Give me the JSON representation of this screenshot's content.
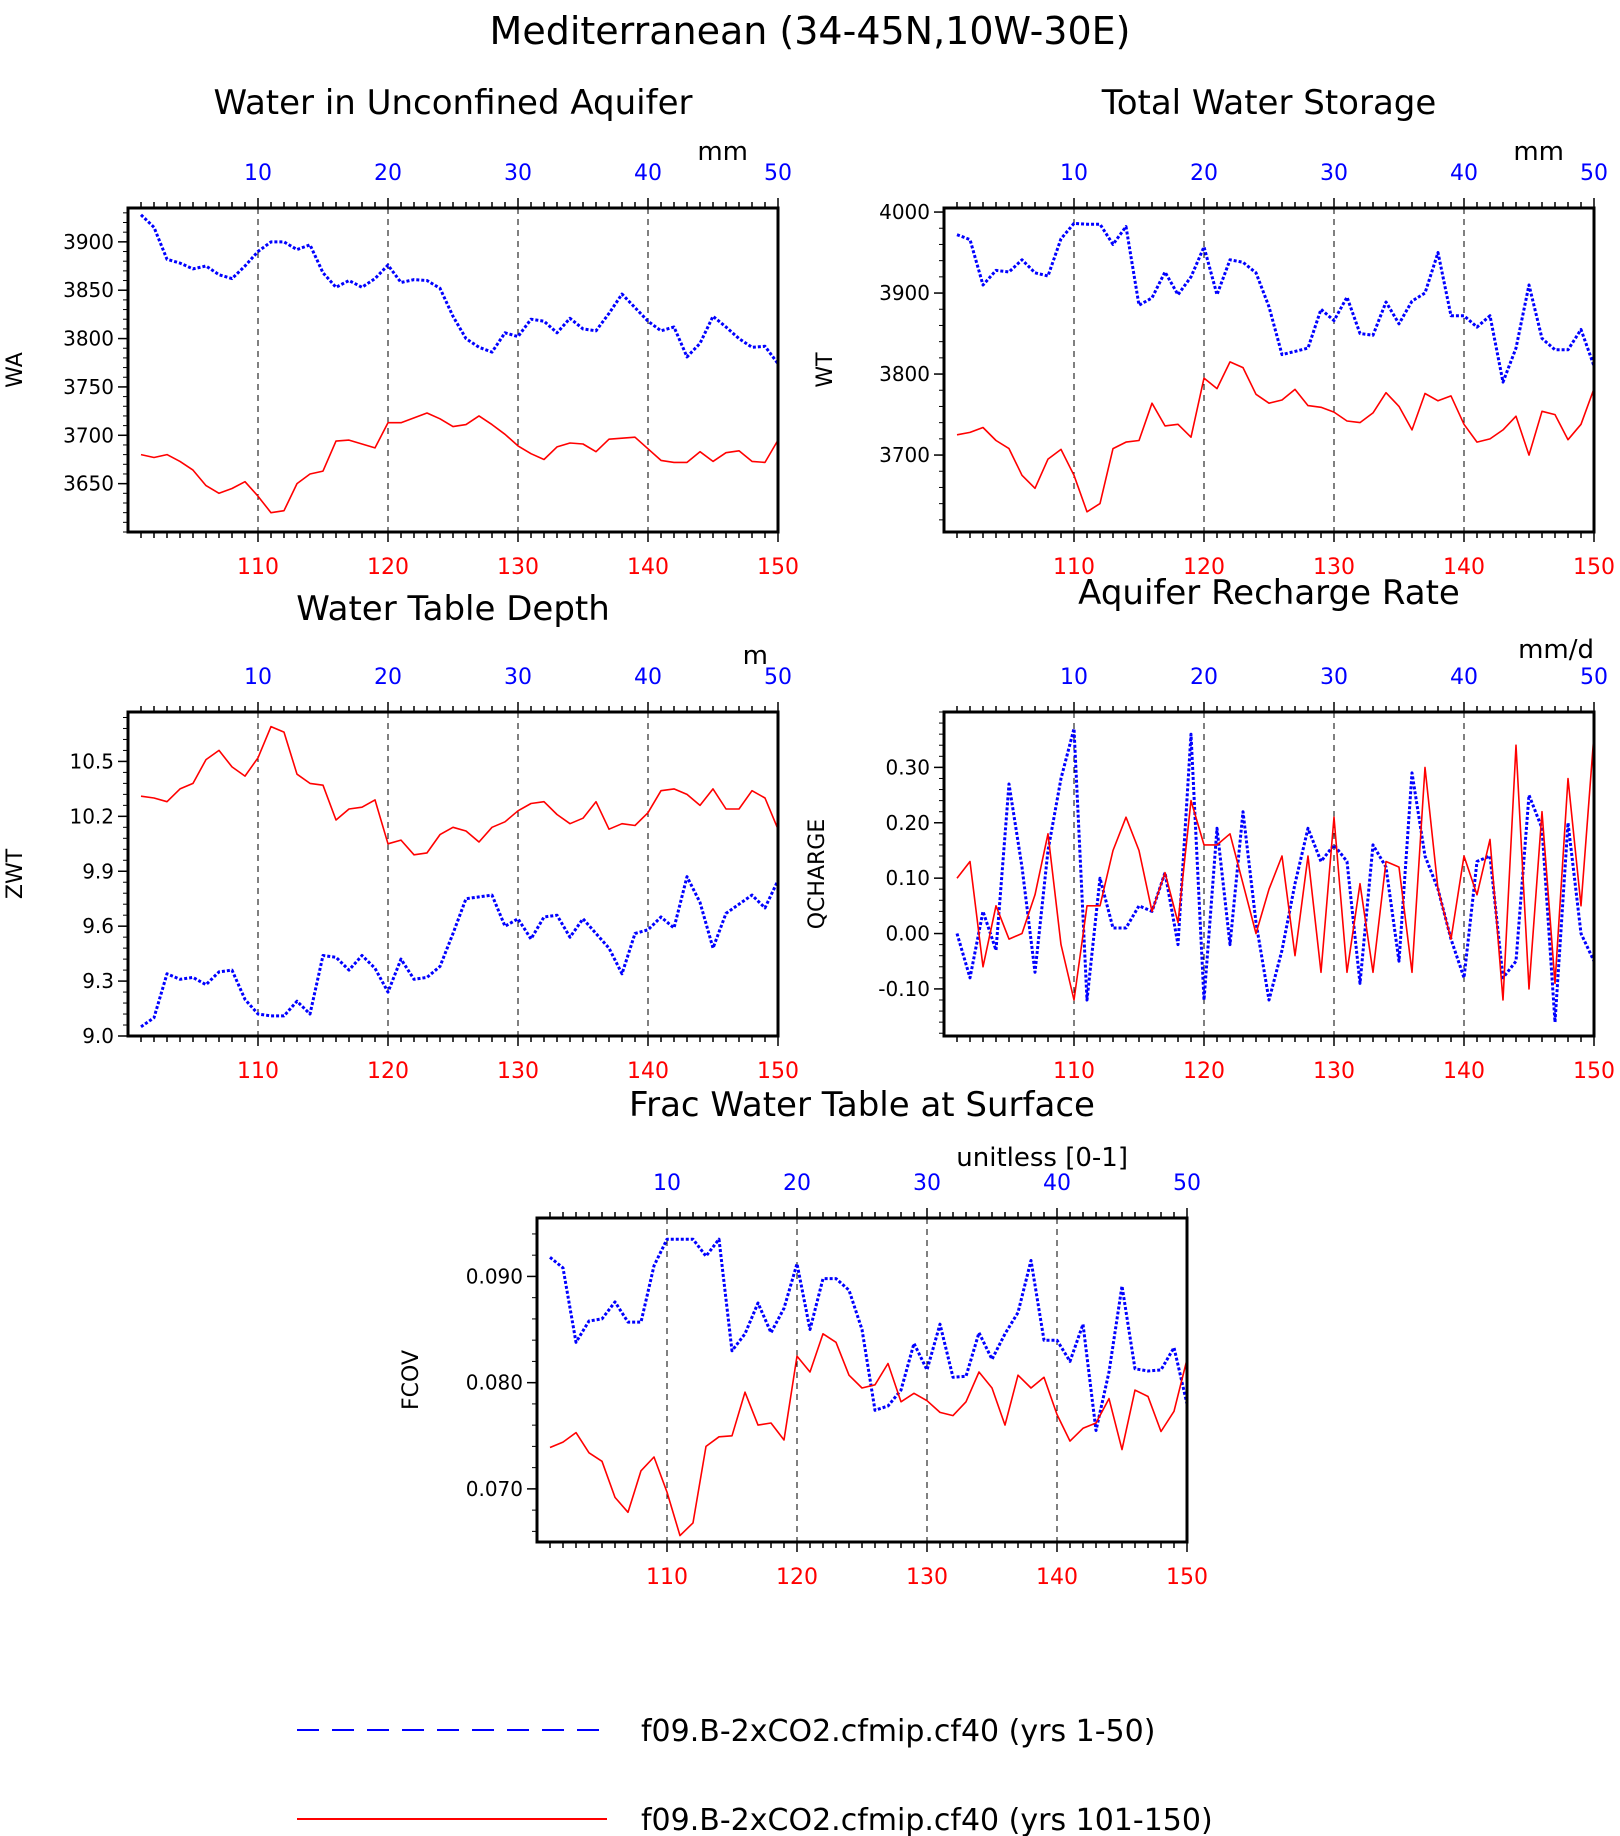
{
  "figure": {
    "title": "Mediterranean (34-45N,10W-30E)",
    "legend": [
      {
        "label": "f09.B-2xCO2.cfmip.cf40 (yrs 1-50)",
        "color": "#0000ff",
        "dash": "dashed"
      },
      {
        "label": "f09.B-2xCO2.cfmip.cf40 (yrs 101-150)",
        "color": "#ff0000",
        "dash": "solid"
      }
    ]
  },
  "chart_data": [
    {
      "type": "line",
      "title": "Water in Unconfined Aquifer",
      "ylabel": "WA",
      "units": "mm",
      "ylim": [
        3600,
        3935
      ],
      "yticks": [
        {
          "v": 3650,
          "label": "3650"
        },
        {
          "v": 3700,
          "label": "3700"
        },
        {
          "v": 3750,
          "label": "3750"
        },
        {
          "v": 3800,
          "label": "3800"
        },
        {
          "v": 3850,
          "label": "3850"
        },
        {
          "v": 3900,
          "label": "3900"
        }
      ],
      "bottom_ticks": [
        "110",
        "120",
        "130",
        "140",
        "150"
      ],
      "top_ticks": [
        "10",
        "20",
        "30",
        "40",
        "50"
      ],
      "series": [
        {
          "name": "f09.B-2xCO2.cfmip.cf40 (yrs 1-50)",
          "color": "#0000ff",
          "dash": "dotted",
          "values": [
            3928,
            3915,
            3882,
            3878,
            3872,
            3875,
            3866,
            3862,
            3875,
            3890,
            3900,
            3900,
            3892,
            3897,
            3868,
            3853,
            3860,
            3853,
            3862,
            3876,
            3858,
            3861,
            3860,
            3852,
            3823,
            3800,
            3791,
            3786,
            3806,
            3802,
            3820,
            3818,
            3806,
            3821,
            3810,
            3808,
            3826,
            3846,
            3832,
            3818,
            3808,
            3812,
            3781,
            3795,
            3823,
            3812,
            3800,
            3791,
            3792,
            3774
          ]
        },
        {
          "name": "f09.B-2xCO2.cfmip.cf40 (yrs 101-150)",
          "color": "#ff0000",
          "dash": "solid",
          "values": [
            3680,
            3677,
            3680,
            3673,
            3664,
            3648,
            3640,
            3645,
            3652,
            3637,
            3620,
            3622,
            3650,
            3660,
            3663,
            3694,
            3695,
            3691,
            3687,
            3713,
            3713,
            3718,
            3723,
            3717,
            3709,
            3711,
            3720,
            3711,
            3701,
            3689,
            3681,
            3675,
            3688,
            3692,
            3691,
            3683,
            3696,
            3697,
            3698,
            3686,
            3674,
            3672,
            3672,
            3683,
            3673,
            3682,
            3684,
            3673,
            3672,
            3695
          ]
        }
      ]
    },
    {
      "type": "line",
      "title": "Total Water Storage",
      "ylabel": "WT",
      "units": "mm",
      "ylim": [
        3605,
        4005
      ],
      "yticks": [
        {
          "v": 3700,
          "label": "3700"
        },
        {
          "v": 3800,
          "label": "3800"
        },
        {
          "v": 3900,
          "label": "3900"
        },
        {
          "v": 4000,
          "label": "4000"
        }
      ],
      "bottom_ticks": [
        "110",
        "120",
        "130",
        "140",
        "150"
      ],
      "top_ticks": [
        "10",
        "20",
        "30",
        "40",
        "50"
      ],
      "series": [
        {
          "name": "f09.B-2xCO2.cfmip.cf40 (yrs 1-50)",
          "color": "#0000ff",
          "dash": "dotted",
          "values": [
            3972,
            3966,
            3910,
            3928,
            3926,
            3941,
            3925,
            3921,
            3967,
            3986,
            3985,
            3985,
            3960,
            3982,
            3885,
            3894,
            3926,
            3898,
            3920,
            3957,
            3898,
            3941,
            3938,
            3925,
            3883,
            3824,
            3828,
            3832,
            3880,
            3866,
            3895,
            3850,
            3848,
            3889,
            3862,
            3890,
            3900,
            3950,
            3872,
            3872,
            3858,
            3872,
            3790,
            3832,
            3910,
            3844,
            3830,
            3830,
            3855,
            3810
          ]
        },
        {
          "name": "f09.B-2xCO2.cfmip.cf40 (yrs 101-150)",
          "color": "#ff0000",
          "dash": "solid",
          "values": [
            3725,
            3728,
            3734,
            3718,
            3708,
            3675,
            3659,
            3695,
            3707,
            3675,
            3630,
            3640,
            3708,
            3716,
            3718,
            3764,
            3736,
            3738,
            3722,
            3795,
            3782,
            3815,
            3808,
            3775,
            3764,
            3768,
            3781,
            3761,
            3759,
            3753,
            3742,
            3740,
            3752,
            3777,
            3760,
            3731,
            3776,
            3767,
            3773,
            3738,
            3716,
            3720,
            3731,
            3748,
            3700,
            3754,
            3750,
            3719,
            3738,
            3782
          ]
        }
      ]
    },
    {
      "type": "line",
      "title": "Water Table Depth",
      "ylabel": "ZWT",
      "units": "m",
      "ylim": [
        9.0,
        10.77
      ],
      "yticks": [
        {
          "v": 9.0,
          "label": "9.0"
        },
        {
          "v": 9.3,
          "label": "9.3"
        },
        {
          "v": 9.6,
          "label": "9.6"
        },
        {
          "v": 9.9,
          "label": "9.9"
        },
        {
          "v": 10.2,
          "label": "10.2"
        },
        {
          "v": 10.5,
          "label": "10.5"
        }
      ],
      "bottom_ticks": [
        "110",
        "120",
        "130",
        "140",
        "150"
      ],
      "top_ticks": [
        "10",
        "20",
        "30",
        "40",
        "50"
      ],
      "series": [
        {
          "name": "f09.B-2xCO2.cfmip.cf40 (yrs 1-50)",
          "color": "#0000ff",
          "dash": "dotted",
          "values": [
            9.05,
            9.1,
            9.34,
            9.31,
            9.32,
            9.28,
            9.35,
            9.36,
            9.2,
            9.12,
            9.11,
            9.11,
            9.19,
            9.12,
            9.44,
            9.43,
            9.36,
            9.44,
            9.37,
            9.24,
            9.42,
            9.31,
            9.32,
            9.38,
            9.56,
            9.75,
            9.76,
            9.77,
            9.6,
            9.64,
            9.53,
            9.65,
            9.66,
            9.54,
            9.64,
            9.56,
            9.48,
            9.34,
            9.56,
            9.58,
            9.65,
            9.59,
            9.87,
            9.73,
            9.48,
            9.67,
            9.72,
            9.77,
            9.7,
            9.85
          ]
        },
        {
          "name": "f09.B-2xCO2.cfmip.cf40 (yrs 101-150)",
          "color": "#ff0000",
          "dash": "solid",
          "values": [
            10.31,
            10.3,
            10.28,
            10.35,
            10.38,
            10.51,
            10.56,
            10.47,
            10.42,
            10.52,
            10.69,
            10.66,
            10.43,
            10.38,
            10.37,
            10.18,
            10.24,
            10.25,
            10.29,
            10.05,
            10.07,
            9.99,
            10.0,
            10.1,
            10.14,
            10.12,
            10.06,
            10.14,
            10.17,
            10.23,
            10.27,
            10.28,
            10.21,
            10.16,
            10.19,
            10.28,
            10.13,
            10.16,
            10.15,
            10.22,
            10.34,
            10.35,
            10.32,
            10.26,
            10.35,
            10.24,
            10.24,
            10.34,
            10.3,
            10.13
          ]
        }
      ]
    },
    {
      "type": "line",
      "title": "Aquifer Recharge Rate",
      "ylabel": "QCHARGE",
      "units": "mm/d",
      "ylim": [
        -0.185,
        0.4
      ],
      "yticks": [
        {
          "v": -0.1,
          "label": "-0.10"
        },
        {
          "v": 0.0,
          "label": "0.00"
        },
        {
          "v": 0.1,
          "label": "0.10"
        },
        {
          "v": 0.2,
          "label": "0.20"
        },
        {
          "v": 0.3,
          "label": "0.30"
        }
      ],
      "bottom_ticks": [
        "110",
        "120",
        "130",
        "140",
        "150"
      ],
      "top_ticks": [
        "10",
        "20",
        "30",
        "40",
        "50"
      ],
      "series": [
        {
          "name": "f09.B-2xCO2.cfmip.cf40 (yrs 1-50)",
          "color": "#0000ff",
          "dash": "dotted",
          "values": [
            0.0,
            -0.08,
            0.04,
            -0.03,
            0.27,
            0.12,
            -0.07,
            0.15,
            0.28,
            0.37,
            -0.12,
            0.1,
            0.01,
            0.01,
            0.05,
            0.04,
            0.11,
            -0.02,
            0.36,
            -0.12,
            0.19,
            -0.02,
            0.22,
            0.02,
            -0.12,
            -0.03,
            0.09,
            0.19,
            0.13,
            0.16,
            0.13,
            -0.09,
            0.16,
            0.12,
            -0.05,
            0.29,
            0.14,
            0.08,
            -0.01,
            -0.08,
            0.13,
            0.14,
            -0.08,
            -0.05,
            0.25,
            0.19,
            -0.16,
            0.2,
            0.0,
            -0.05
          ]
        },
        {
          "name": "f09.B-2xCO2.cfmip.cf40 (yrs 101-150)",
          "color": "#ff0000",
          "dash": "solid",
          "values": [
            0.1,
            0.13,
            -0.06,
            0.05,
            -0.01,
            0.0,
            0.07,
            0.18,
            -0.02,
            -0.12,
            0.05,
            0.05,
            0.15,
            0.21,
            0.15,
            0.04,
            0.11,
            0.02,
            0.24,
            0.16,
            0.16,
            0.18,
            0.09,
            0.0,
            0.08,
            0.14,
            -0.04,
            0.14,
            -0.07,
            0.21,
            -0.07,
            0.09,
            -0.07,
            0.13,
            0.12,
            -0.07,
            0.3,
            0.08,
            -0.01,
            0.14,
            0.07,
            0.17,
            -0.12,
            0.34,
            -0.1,
            0.22,
            -0.09,
            0.28,
            0.05,
            0.36
          ]
        }
      ]
    },
    {
      "type": "line",
      "title": "Frac Water Table at Surface",
      "ylabel": "FCOV",
      "units": "unitless [0-1]",
      "ylim": [
        0.065,
        0.0955
      ],
      "yticks": [
        {
          "v": 0.07,
          "label": "0.070"
        },
        {
          "v": 0.08,
          "label": "0.080"
        },
        {
          "v": 0.09,
          "label": "0.090"
        }
      ],
      "bottom_ticks": [
        "110",
        "120",
        "130",
        "140",
        "150"
      ],
      "top_ticks": [
        "10",
        "20",
        "30",
        "40",
        "50"
      ],
      "series": [
        {
          "name": "f09.B-2xCO2.cfmip.cf40 (yrs 1-50)",
          "color": "#0000ff",
          "dash": "dotted",
          "values": [
            0.0918,
            0.0908,
            0.0838,
            0.0858,
            0.086,
            0.0876,
            0.0857,
            0.0857,
            0.091,
            0.0935,
            0.0935,
            0.0935,
            0.0919,
            0.0935,
            0.083,
            0.0846,
            0.0875,
            0.0847,
            0.087,
            0.0912,
            0.085,
            0.0898,
            0.0898,
            0.0887,
            0.085,
            0.0774,
            0.0778,
            0.0793,
            0.0837,
            0.0812,
            0.0855,
            0.0805,
            0.0806,
            0.0847,
            0.0822,
            0.0846,
            0.0866,
            0.0915,
            0.084,
            0.084,
            0.082,
            0.0855,
            0.0755,
            0.081,
            0.0891,
            0.0813,
            0.0811,
            0.0812,
            0.0833,
            0.078
          ]
        },
        {
          "name": "f09.B-2xCO2.cfmip.cf40 (yrs 101-150)",
          "color": "#ff0000",
          "dash": "solid",
          "values": [
            0.0739,
            0.0744,
            0.0753,
            0.0734,
            0.0726,
            0.0692,
            0.0678,
            0.0717,
            0.073,
            0.0697,
            0.0656,
            0.0668,
            0.074,
            0.0749,
            0.075,
            0.0791,
            0.076,
            0.0762,
            0.0746,
            0.0825,
            0.081,
            0.0846,
            0.0838,
            0.0807,
            0.0795,
            0.0798,
            0.0818,
            0.0782,
            0.079,
            0.0783,
            0.0772,
            0.0769,
            0.0782,
            0.081,
            0.0795,
            0.076,
            0.0807,
            0.0795,
            0.0805,
            0.077,
            0.0745,
            0.0757,
            0.0762,
            0.0785,
            0.0737,
            0.0793,
            0.0787,
            0.0754,
            0.0773,
            0.0822
          ]
        }
      ]
    }
  ]
}
